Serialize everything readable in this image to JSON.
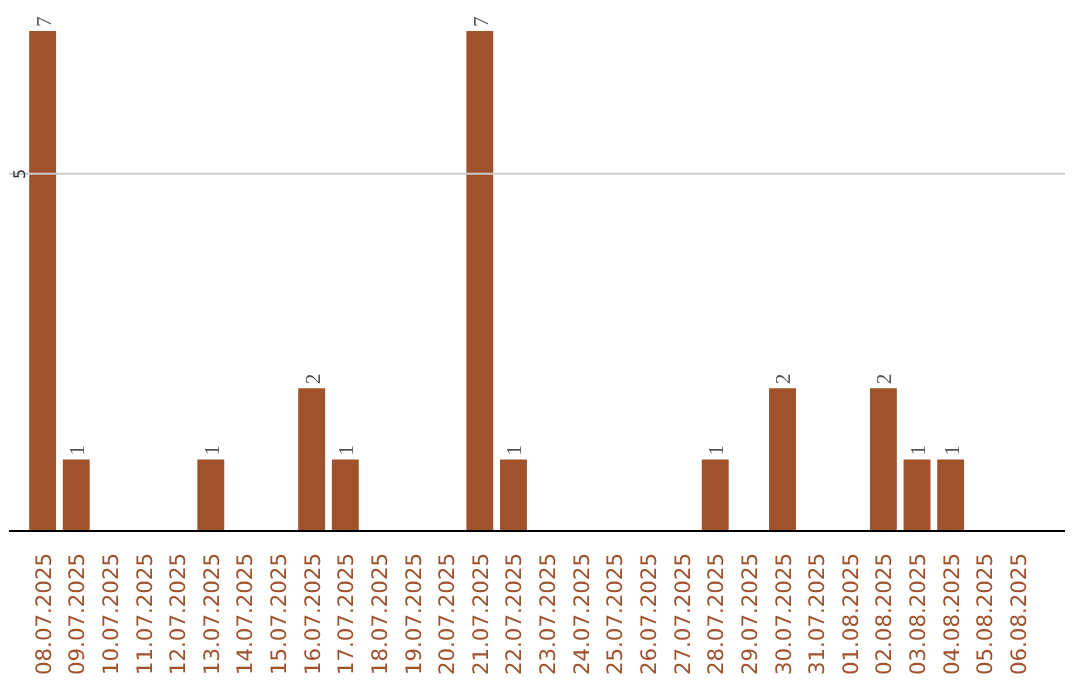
{
  "chart_data": {
    "type": "bar",
    "categories": [
      "08.07.2025",
      "09.07.2025",
      "10.07.2025",
      "11.07.2025",
      "12.07.2025",
      "13.07.2025",
      "14.07.2025",
      "15.07.2025",
      "16.07.2025",
      "17.07.2025",
      "18.07.2025",
      "19.07.2025",
      "20.07.2025",
      "21.07.2025",
      "22.07.2025",
      "23.07.2025",
      "24.07.2025",
      "25.07.2025",
      "26.07.2025",
      "27.07.2025",
      "28.07.2025",
      "29.07.2025",
      "30.07.2025",
      "31.07.2025",
      "01.08.2025",
      "02.08.2025",
      "03.08.2025",
      "04.08.2025",
      "05.08.2025",
      "06.08.2025"
    ],
    "values": [
      7,
      1,
      0,
      0,
      0,
      1,
      0,
      0,
      2,
      1,
      0,
      0,
      0,
      7,
      1,
      0,
      0,
      0,
      0,
      0,
      1,
      0,
      2,
      0,
      0,
      2,
      1,
      1,
      0,
      0
    ],
    "value_labels": [
      "7",
      "1",
      null,
      null,
      null,
      "1",
      null,
      null,
      "2",
      "1",
      null,
      null,
      null,
      "7",
      "1",
      null,
      null,
      null,
      null,
      null,
      "1",
      null,
      "2",
      null,
      null,
      "2",
      "1",
      "1",
      null,
      null
    ],
    "color": "#a0522d",
    "ref_lines": [
      {
        "axis": "y",
        "value": 5,
        "label": "5",
        "color": "#cccccc"
      }
    ],
    "data_labels": false
  }
}
